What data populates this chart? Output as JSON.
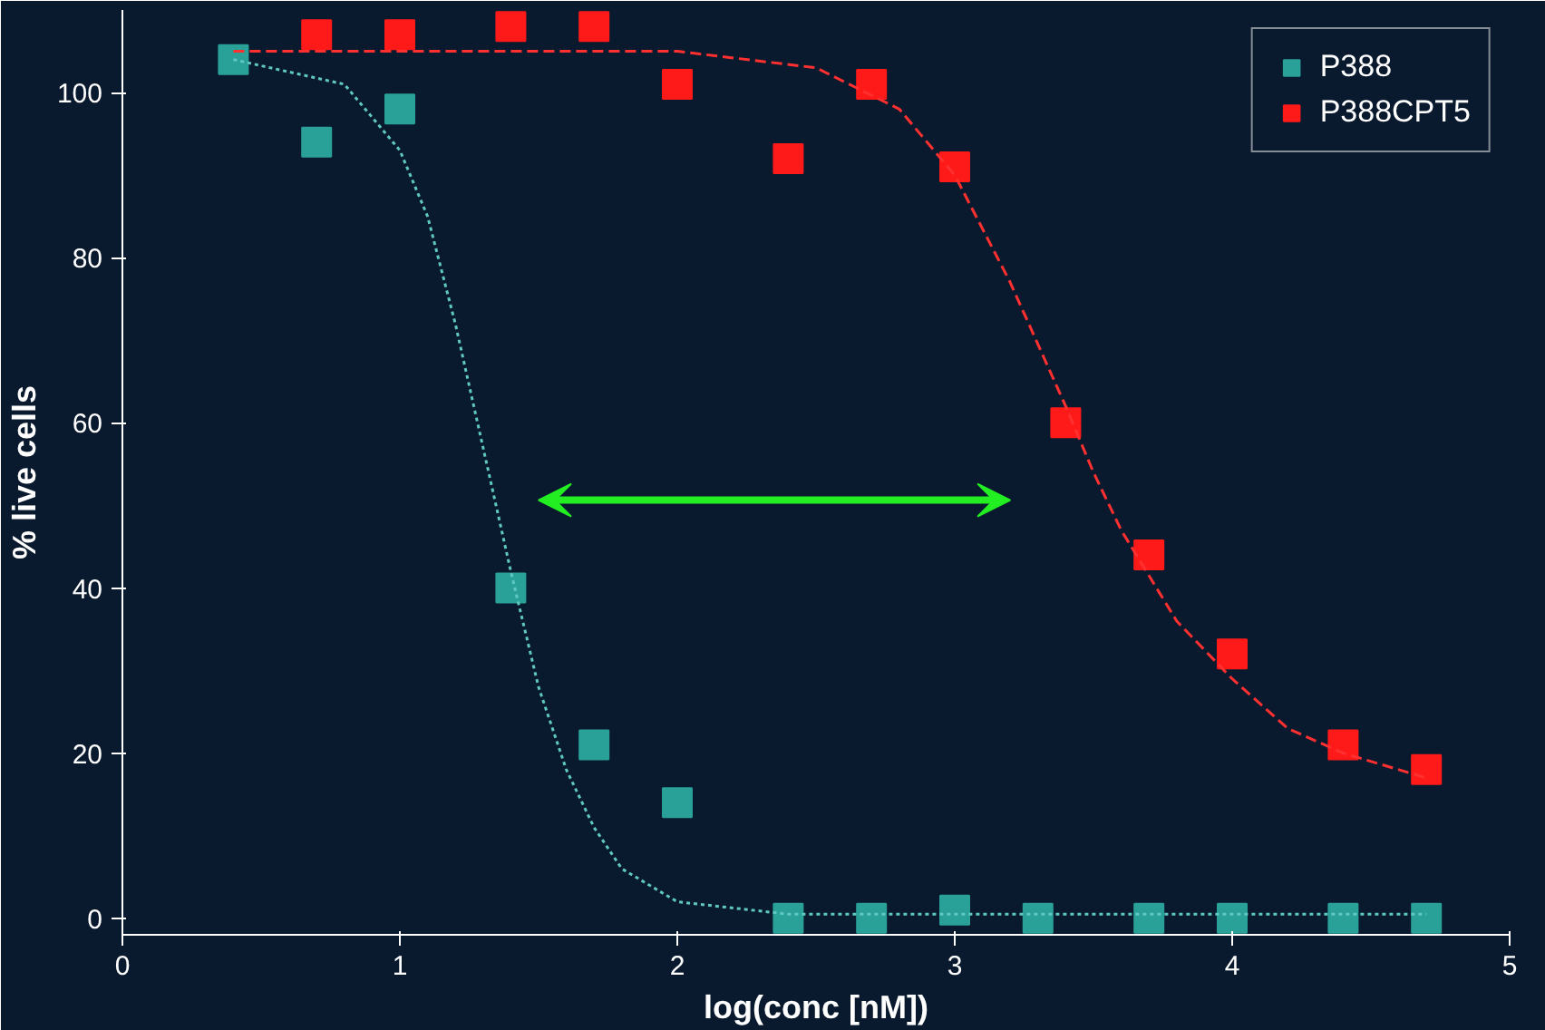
{
  "chart_data": {
    "type": "scatter",
    "xlabel": "log(conc [nM])",
    "ylabel": "% live cells",
    "xlim": [
      0,
      5
    ],
    "ylim": [
      -2,
      110
    ],
    "xticks": [
      0,
      1,
      2,
      3,
      4,
      5
    ],
    "yticks": [
      0,
      20,
      40,
      60,
      80,
      100
    ],
    "grid": false,
    "legend": "top right",
    "marker": "square",
    "series": [
      {
        "name": "P388",
        "color": "#2aa198",
        "x": [
          0.4,
          0.7,
          1.0,
          1.4,
          1.7,
          2.0,
          2.4,
          2.7,
          3.0,
          3.3,
          3.7,
          4.0,
          4.4,
          4.7
        ],
        "values": [
          104,
          94,
          98,
          40,
          21,
          14,
          0,
          0,
          1,
          0,
          0,
          0,
          0,
          0
        ]
      },
      {
        "name": "P388CPT5",
        "color": "#ff1a1a",
        "x": [
          0.7,
          1.0,
          1.4,
          1.7,
          2.0,
          2.4,
          2.7,
          3.0,
          3.4,
          3.7,
          4.0,
          4.4,
          4.7
        ],
        "values": [
          107,
          107,
          108,
          108,
          101,
          92,
          101,
          91,
          60,
          44,
          32,
          21,
          18
        ]
      },
      {
        "type": "line",
        "color": "#5fc8c0",
        "line_style": "dotted",
        "marker": "none",
        "x": [
          0.4,
          0.8,
          1.0,
          1.1,
          1.2,
          1.3,
          1.4,
          1.5,
          1.6,
          1.7,
          1.8,
          2.0,
          2.4,
          3.0,
          4.7
        ],
        "values": [
          104,
          101,
          93,
          85,
          72,
          57,
          42,
          28,
          18,
          11,
          6,
          2,
          0.5,
          0.5,
          0.5
        ]
      },
      {
        "type": "line",
        "color": "#ff3030",
        "line_style": "dashed",
        "marker": "none",
        "x": [
          0.4,
          2.0,
          2.5,
          2.8,
          3.0,
          3.2,
          3.4,
          3.5,
          3.6,
          3.8,
          4.0,
          4.2,
          4.4,
          4.7
        ],
        "values": [
          105,
          105,
          103,
          98,
          90,
          77,
          62,
          54,
          47,
          36,
          29,
          23,
          20,
          17
        ]
      }
    ]
  }
}
